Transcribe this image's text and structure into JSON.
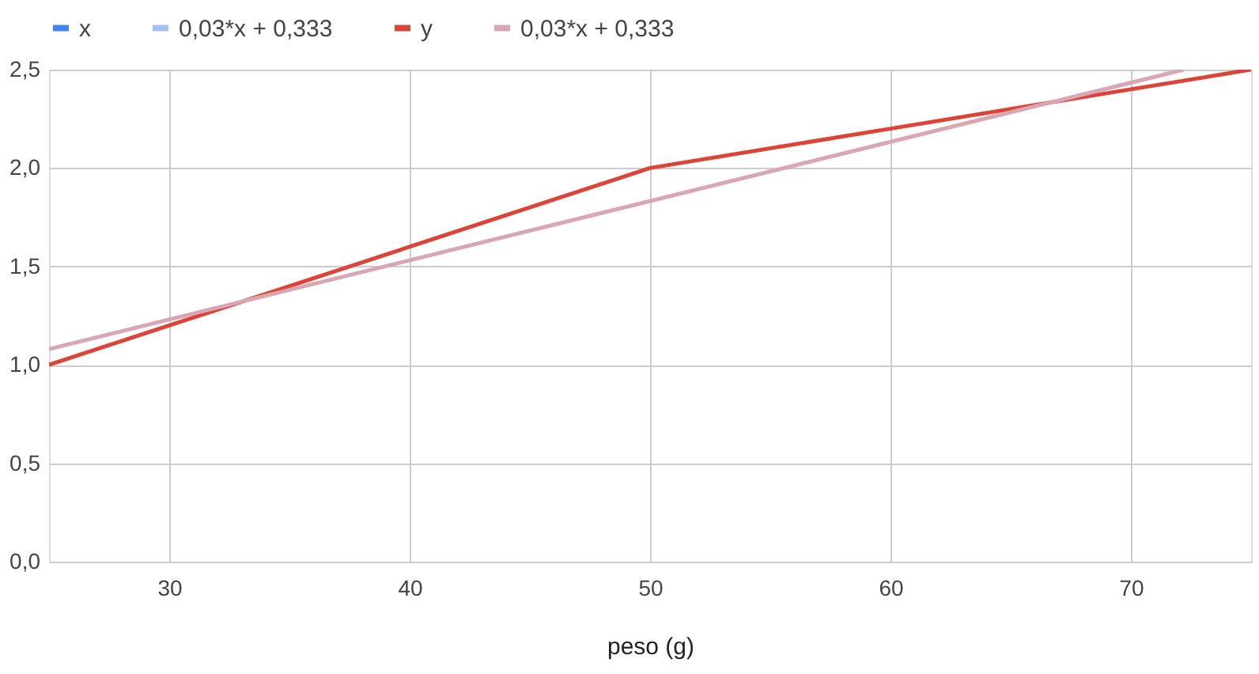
{
  "chart_data": {
    "type": "line",
    "xlabel": "peso (g)",
    "x": [
      25,
      40,
      50,
      60,
      70,
      75
    ],
    "series": [
      {
        "name": "x",
        "color": "#4285f4",
        "values": [
          null,
          null,
          null,
          null,
          null,
          null
        ]
      },
      {
        "name": "0,03*x + 0,333",
        "color": "#a4c2f4",
        "values": [
          null,
          null,
          null,
          null,
          null,
          null
        ]
      },
      {
        "name": "y",
        "color": "#db4437",
        "values": [
          1.0,
          1.6,
          2.0,
          2.2,
          2.4,
          2.5
        ]
      },
      {
        "name": "0,03*x + 0,333",
        "color": "#d9a6b4",
        "x": [
          25,
          72.2
        ],
        "values": [
          1.08,
          2.5
        ]
      }
    ],
    "xlim": [
      25,
      75
    ],
    "xticks": [
      30,
      40,
      50,
      60,
      70
    ],
    "ylim": [
      0,
      2.5
    ],
    "yticks": [
      {
        "value": 0,
        "label": "0,0"
      },
      {
        "value": 0.5,
        "label": "0,5"
      },
      {
        "value": 1,
        "label": "1,0"
      },
      {
        "value": 1.5,
        "label": "1,5"
      },
      {
        "value": 2,
        "label": "2,0"
      },
      {
        "value": 2.5,
        "label": "2,5"
      }
    ],
    "grid": true,
    "legend": "top",
    "marker": "none",
    "line_style": "solid"
  }
}
